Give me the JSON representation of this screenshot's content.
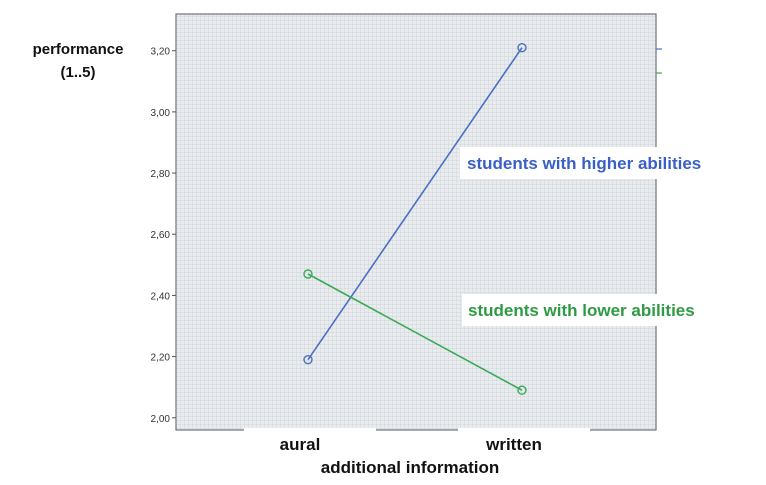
{
  "chart_data": {
    "type": "line",
    "title": "",
    "ylabel_line1": "performance",
    "ylabel_line2": "(1..5)",
    "xlabel": "additional information",
    "categories": [
      "aural",
      "written"
    ],
    "ylim": [
      1.96,
      3.32
    ],
    "yticks": [
      "2,00",
      "2,20",
      "2,40",
      "2,60",
      "2,80",
      "3,00",
      "3,20"
    ],
    "ytick_values": [
      2.0,
      2.2,
      2.4,
      2.6,
      2.8,
      3.0,
      3.2
    ],
    "grid": true,
    "series": [
      {
        "name": "students with higher abilities",
        "color": "#4a6fc4",
        "label_color": "#3a5fc8",
        "values": [
          2.19,
          3.21
        ]
      },
      {
        "name": "students with lower abilities",
        "color": "#3aaa57",
        "label_color": "#2e9a44",
        "values": [
          2.47,
          2.09
        ]
      }
    ],
    "plot_background": "#e8ebee"
  }
}
